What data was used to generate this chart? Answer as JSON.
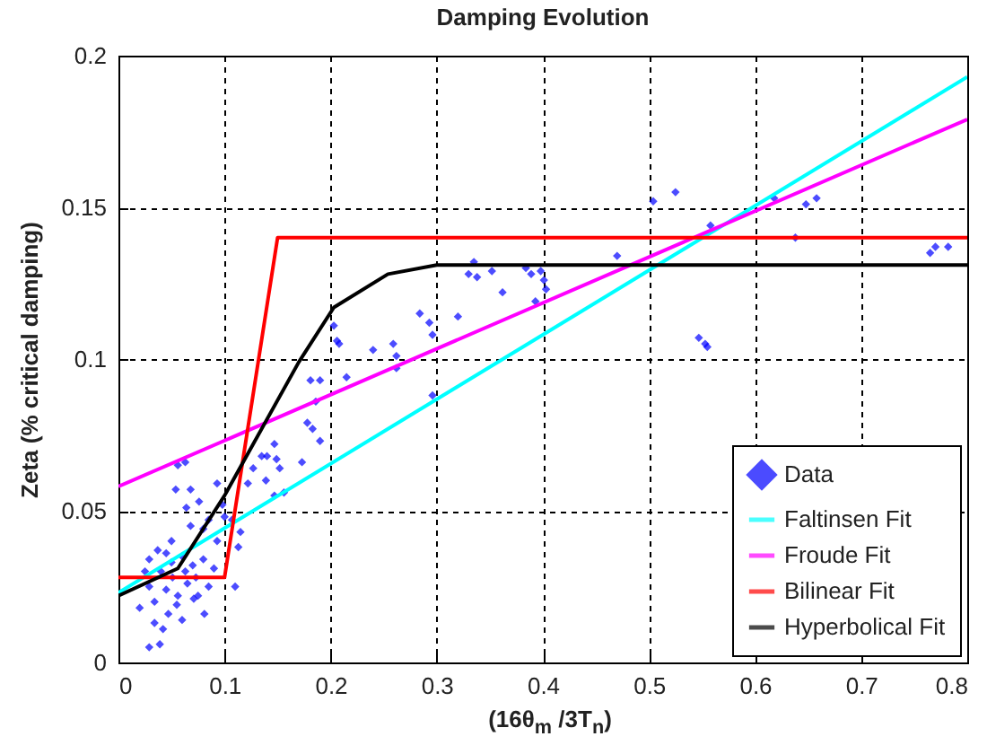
{
  "chart_data": {
    "type": "scatter",
    "title": "Damping Evolution",
    "xlabel": "(16θ$_{m}$ /3T$_{n}$)",
    "ylabel": "Zeta (% critical damping)",
    "xlim": [
      0,
      0.8
    ],
    "ylim": [
      0,
      0.2
    ],
    "xticks": [
      0,
      0.1,
      0.2,
      0.3,
      0.4,
      0.5,
      0.6,
      0.7,
      0.8
    ],
    "yticks": [
      0,
      0.05,
      0.1,
      0.15,
      0.2
    ],
    "grid": true,
    "legend": "bottom right",
    "series": [
      {
        "name": "Data",
        "marker": "diamond",
        "color": "#0000ff",
        "x": [
          0.504,
          0.525,
          0.47,
          0.335,
          0.33,
          0.338,
          0.352,
          0.384,
          0.389,
          0.398,
          0.401,
          0.403,
          0.362,
          0.393,
          0.284,
          0.293,
          0.296,
          0.32,
          0.203,
          0.206,
          0.208,
          0.24,
          0.259,
          0.547,
          0.553,
          0.555,
          0.638,
          0.618,
          0.648,
          0.658,
          0.765,
          0.77,
          0.782,
          0.558,
          0.262,
          0.262,
          0.215,
          0.181,
          0.19,
          0.296,
          0.186,
          0.178,
          0.183,
          0.19,
          0.173,
          0.147,
          0.14,
          0.149,
          0.152,
          0.135,
          0.127,
          0.139,
          0.122,
          0.147,
          0.156,
          0.063,
          0.056,
          0.054,
          0.068,
          0.093,
          0.076,
          0.064,
          0.098,
          0.107,
          0.085,
          0.068,
          0.08,
          0.115,
          0.093,
          0.113,
          0.11,
          0.029,
          0.037,
          0.045,
          0.05,
          0.06,
          0.07,
          0.08,
          0.09,
          0.029,
          0.039,
          0.034,
          0.047,
          0.081,
          0.071,
          0.085,
          0.034,
          0.056,
          0.029,
          0.04,
          0.051,
          0.063,
          0.073,
          0.045,
          0.055,
          0.065,
          0.075,
          0.042,
          0.06,
          0.05,
          0.02,
          0.025,
          0.1
        ],
        "values": [
          0.152,
          0.155,
          0.134,
          0.132,
          0.128,
          0.127,
          0.129,
          0.13,
          0.128,
          0.129,
          0.126,
          0.123,
          0.122,
          0.119,
          0.115,
          0.112,
          0.108,
          0.114,
          0.111,
          0.106,
          0.105,
          0.103,
          0.105,
          0.107,
          0.105,
          0.104,
          0.14,
          0.153,
          0.151,
          0.153,
          0.135,
          0.137,
          0.137,
          0.144,
          0.101,
          0.097,
          0.094,
          0.093,
          0.093,
          0.088,
          0.086,
          0.079,
          0.077,
          0.073,
          0.066,
          0.072,
          0.068,
          0.067,
          0.064,
          0.068,
          0.064,
          0.06,
          0.059,
          0.055,
          0.056,
          0.066,
          0.065,
          0.057,
          0.057,
          0.059,
          0.053,
          0.051,
          0.052,
          0.047,
          0.047,
          0.045,
          0.044,
          0.043,
          0.04,
          0.038,
          0.025,
          0.034,
          0.037,
          0.036,
          0.033,
          0.035,
          0.032,
          0.034,
          0.031,
          0.005,
          0.006,
          0.013,
          0.016,
          0.016,
          0.021,
          0.025,
          0.02,
          0.022,
          0.025,
          0.03,
          0.028,
          0.03,
          0.028,
          0.024,
          0.019,
          0.026,
          0.022,
          0.011,
          0.014,
          0.04,
          0.018,
          0.03,
          0.048
        ]
      },
      {
        "name": "Faltinsen Fit",
        "type": "line",
        "color": "#00ffff",
        "x": [
          0,
          0.8
        ],
        "values": [
          0.023,
          0.193
        ]
      },
      {
        "name": "Froude Fit",
        "type": "line",
        "color": "#ff00ff",
        "x": [
          0,
          0.8
        ],
        "values": [
          0.058,
          0.179
        ]
      },
      {
        "name": "Bilinear Fit",
        "type": "line",
        "color": "#ff0000",
        "x": [
          0,
          0.1,
          0.15,
          0.8
        ],
        "values": [
          0.028,
          0.028,
          0.14,
          0.14
        ]
      },
      {
        "name": "Hyperbolical Fit",
        "type": "line",
        "color": "#000000",
        "x": [
          0,
          0.056,
          0.1,
          0.17,
          0.203,
          0.254,
          0.3,
          0.8
        ],
        "values": [
          0.022,
          0.031,
          0.055,
          0.099,
          0.117,
          0.128,
          0.131,
          0.131
        ]
      }
    ]
  }
}
